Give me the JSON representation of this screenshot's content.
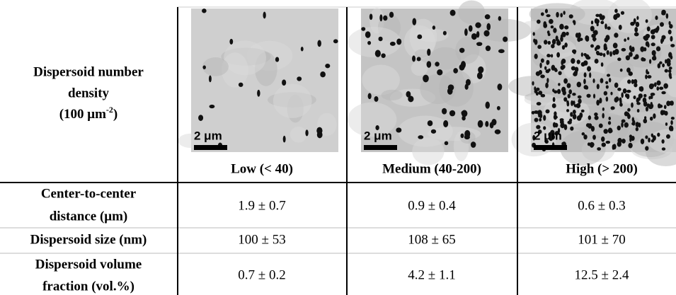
{
  "header": {
    "title_lines": [
      "Dispersoid number",
      "density"
    ],
    "unit": {
      "open": "(100 μm",
      "sup": "-2",
      "close": ")"
    },
    "columns": [
      "Low (< 40)",
      "Medium (40-200)",
      "High (> 200)"
    ],
    "scale_bars": [
      "2 μm",
      "2 μm",
      "2 μm"
    ]
  },
  "rows": [
    {
      "label_lines": [
        "Center-to-center",
        "distance (μm)"
      ],
      "values": [
        "1.9 ± 0.7",
        "0.9 ± 0.4",
        "0.6 ± 0.3"
      ]
    },
    {
      "label_lines": [
        "Dispersoid size (nm)"
      ],
      "values": [
        "100 ± 53",
        "108 ± 65",
        "101 ± 70"
      ]
    },
    {
      "label_lines": [
        "Dispersoid volume",
        "fraction (vol.%)"
      ],
      "values": [
        "0.7 ± 0.2",
        "4.2 ± 1.1",
        "12.5 ± 2.4"
      ]
    }
  ]
}
